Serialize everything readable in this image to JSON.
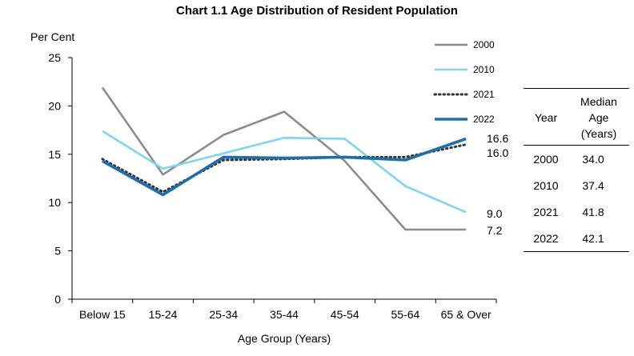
{
  "chart_data": {
    "type": "line",
    "title": "Chart 1.1  Age Distribution of Resident Population",
    "ylabel": "Per Cent",
    "xlabel": "Age Group (Years)",
    "ylim": [
      0,
      25
    ],
    "yticks": [
      "0",
      "5",
      "10",
      "15",
      "20",
      "25"
    ],
    "categories": [
      "Below 15",
      "15-24",
      "25-34",
      "35-44",
      "45-54",
      "55-64",
      "65 & Over"
    ],
    "series": [
      {
        "name": "2000",
        "color": "#8c8c8c",
        "style": "solid",
        "values": [
          21.9,
          12.9,
          17.0,
          19.4,
          14.3,
          7.2,
          7.2
        ]
      },
      {
        "name": "2010",
        "color": "#7fd3f0",
        "style": "solid",
        "values": [
          17.4,
          13.5,
          15.1,
          16.7,
          16.6,
          11.7,
          9.0
        ]
      },
      {
        "name": "2021",
        "color": "#333333",
        "style": "dotted",
        "values": [
          14.5,
          11.1,
          14.4,
          14.5,
          14.7,
          14.7,
          16.0
        ]
      },
      {
        "name": "2022",
        "color": "#1f6ea8",
        "style": "thick",
        "values": [
          14.3,
          10.8,
          14.7,
          14.6,
          14.7,
          14.4,
          16.6
        ]
      }
    ],
    "end_labels": [
      {
        "text": "16.6",
        "value": 16.6
      },
      {
        "text": "16.0",
        "value": 16.0
      },
      {
        "text": "9.0",
        "value": 9.0
      },
      {
        "text": "7.2",
        "value": 7.2
      }
    ],
    "legend_placement": "top-right"
  },
  "median_table": {
    "col_year": "Year",
    "col_median": [
      "Median",
      "Age",
      "(Years)"
    ],
    "rows": [
      {
        "year": "2000",
        "age": "34.0"
      },
      {
        "year": "2010",
        "age": "37.4"
      },
      {
        "year": "2021",
        "age": "41.8"
      },
      {
        "year": "2022",
        "age": "42.1"
      }
    ]
  }
}
